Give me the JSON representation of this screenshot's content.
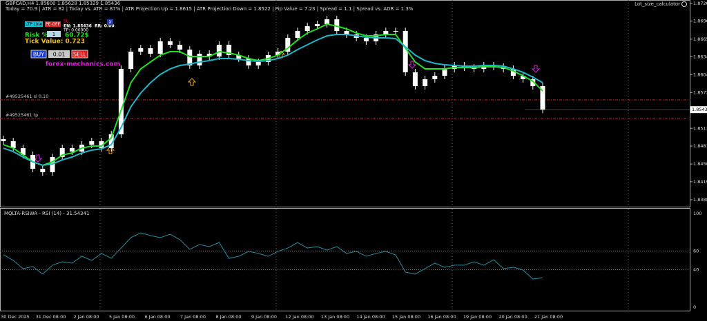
{
  "chart_data": {
    "type": "candlestick",
    "title": "GBPCAD,H4  1.85600 1.85628 1.85329 1.85436",
    "subtitle": "Today = 70.9  |  ATR = 82  |  Today vs. ATR = 87%  |  ATR Projection Up = 1.8615  |  ATR Projection Down = 1.8522  |  Pip Value = 7.23  |  Spread = 1.1  |  Spread vs. ADR = 1.3%",
    "corner_label": "Lot_size_calculator",
    "close": [
      1.84893,
      1.84774,
      1.84656,
      1.84418,
      1.84359,
      1.8462,
      1.84774,
      1.84715,
      1.84833,
      1.84893,
      1.84774,
      1.85011,
      1.86138,
      1.86435,
      1.86494,
      1.86399,
      1.86612,
      1.86553,
      1.8647,
      1.86197,
      1.86399,
      1.86352,
      1.86553,
      1.86375,
      1.86316,
      1.86197,
      1.86257,
      1.86375,
      1.86435,
      1.86672,
      1.8679,
      1.86873,
      1.86909,
      1.86992,
      1.8679,
      1.86731,
      1.86672,
      1.86612,
      1.86731,
      1.8679,
      1.8679,
      1.86079,
      1.85842,
      1.8596,
      1.86019,
      1.86138,
      1.86197,
      1.86162,
      1.86138,
      1.86197,
      1.86174,
      1.86138,
      1.86019,
      1.8596,
      1.85842,
      1.85436
    ],
    "series": [
      {
        "color": "#22e022",
        "values": [
          1.84833,
          1.84774,
          1.84655,
          1.84537,
          1.84478,
          1.84537,
          1.84655,
          1.84691,
          1.84774,
          1.8481,
          1.8481,
          1.84952,
          1.85426,
          1.85901,
          1.86138,
          1.86257,
          1.86375,
          1.86434,
          1.86434,
          1.86351,
          1.86351,
          1.86351,
          1.86434,
          1.86411,
          1.86375,
          1.86316,
          1.8628,
          1.86316,
          1.86375,
          1.86494,
          1.86636,
          1.86755,
          1.86826,
          1.86909,
          1.86873,
          1.86826,
          1.86755,
          1.86707,
          1.86707,
          1.86731,
          1.86731,
          1.86494,
          1.86257,
          1.86138,
          1.86138,
          1.86138,
          1.86162,
          1.86162,
          1.86162,
          1.86174,
          1.86174,
          1.86162,
          1.86102,
          1.86019,
          1.85925,
          1.85758
        ]
      },
      {
        "color": "#20b8c8",
        "values": [
          1.84774,
          1.84715,
          1.8462,
          1.84537,
          1.84478,
          1.84501,
          1.84572,
          1.8462,
          1.84691,
          1.84739,
          1.84762,
          1.84833,
          1.8513,
          1.85486,
          1.85723,
          1.85901,
          1.86043,
          1.86138,
          1.86197,
          1.86221,
          1.86257,
          1.8628,
          1.86316,
          1.86316,
          1.86304,
          1.8628,
          1.86268,
          1.8628,
          1.86316,
          1.86375,
          1.8647,
          1.86553,
          1.86636,
          1.86707,
          1.86731,
          1.86731,
          1.86707,
          1.86684,
          1.86672,
          1.86672,
          1.8666,
          1.86518,
          1.86375,
          1.8628,
          1.86233,
          1.86209,
          1.86197,
          1.86185,
          1.86185,
          1.86197,
          1.86197,
          1.86185,
          1.86138,
          1.86079,
          1.85996,
          1.85901
        ]
      }
    ],
    "candle_color": "#ffffff",
    "ylim": [
      1.83766,
      1.87324
    ],
    "yticks": [
      1.87265,
      {
        "value": 1.8696,
        "label": "1.86960"
      },
      {
        "value": 1.8665,
        "label": "1.86650"
      },
      1.86345,
      {
        "value": 1.8604,
        "label": "1.86040"
      },
      {
        "value": 1.8573,
        "label": "1.85730"
      },
      1.85115,
      {
        "value": 1.8481,
        "label": "1.84810"
      },
      {
        "value": 1.845,
        "label": "1.84500"
      },
      1.84195,
      1.83885
    ],
    "current_price": 1.85436,
    "levels": [
      {
        "label": "#49525461 sl 0.10",
        "value": 1.85604,
        "color": "#cc2222"
      },
      {
        "label": "#49525461 tp",
        "value": 1.85284,
        "color": "#cc2222"
      }
    ],
    "x_labels": [
      "30 Dec 2025",
      "31 Dec 08:00",
      "2 Jan 08:00",
      "5 Jan 08:00",
      "6 Jan 08:00",
      "7 Jan 08:00",
      "8 Jan 08:00",
      "9 Jan 08:00",
      "12 Jan 08:00",
      "13 Jan 08:00",
      "14 Jan 08:00",
      "15 Jan 08:00",
      "16 Jan 08:00",
      "19 Jan 08:00",
      "20 Jan 08:00",
      "21 Jan 08:00"
    ],
    "rsi": {
      "title": "MQLTA-RSIWA - RSI (14) - 31.54341",
      "color": "#2a8e9e",
      "values": [
        55.9,
        50,
        41.2,
        43.4,
        35.3,
        44.9,
        48.5,
        47.1,
        54.4,
        50,
        57.4,
        52.2,
        63.2,
        74.3,
        79.4,
        76.5,
        74.3,
        77.9,
        72.1,
        61.8,
        66.9,
        64.7,
        69.1,
        52.2,
        54.4,
        59.6,
        57.4,
        54.4,
        59.6,
        63.2,
        69.1,
        63.2,
        64.7,
        61,
        64.7,
        57.4,
        59.6,
        54.4,
        57.4,
        59.6,
        55.9,
        37.5,
        35.3,
        41.2,
        47.1,
        42.6,
        44.9,
        44.9,
        48.5,
        44.9,
        50.7,
        41.2,
        42.6,
        39.7,
        30.1,
        31.5
      ],
      "ylim": [
        0,
        100
      ],
      "yticks": [
        100,
        60,
        40,
        0
      ]
    }
  },
  "ui": {
    "ltp": "LTP Line",
    "pe": "PE OFF",
    "sl": "SL:",
    "en": "EN: 1.85436",
    "rr": "RR: 0.00",
    "tp": "TP: 0.00000",
    "close": "X",
    "risk_label": "Risk %",
    "risk_value": "1",
    "risk_amount": "60.72$",
    "tick_value": "Tick Value: 0.723",
    "buy": "BUY",
    "lots": "0.01",
    "sell": "SELL",
    "site": "forex-mechanics.com"
  }
}
